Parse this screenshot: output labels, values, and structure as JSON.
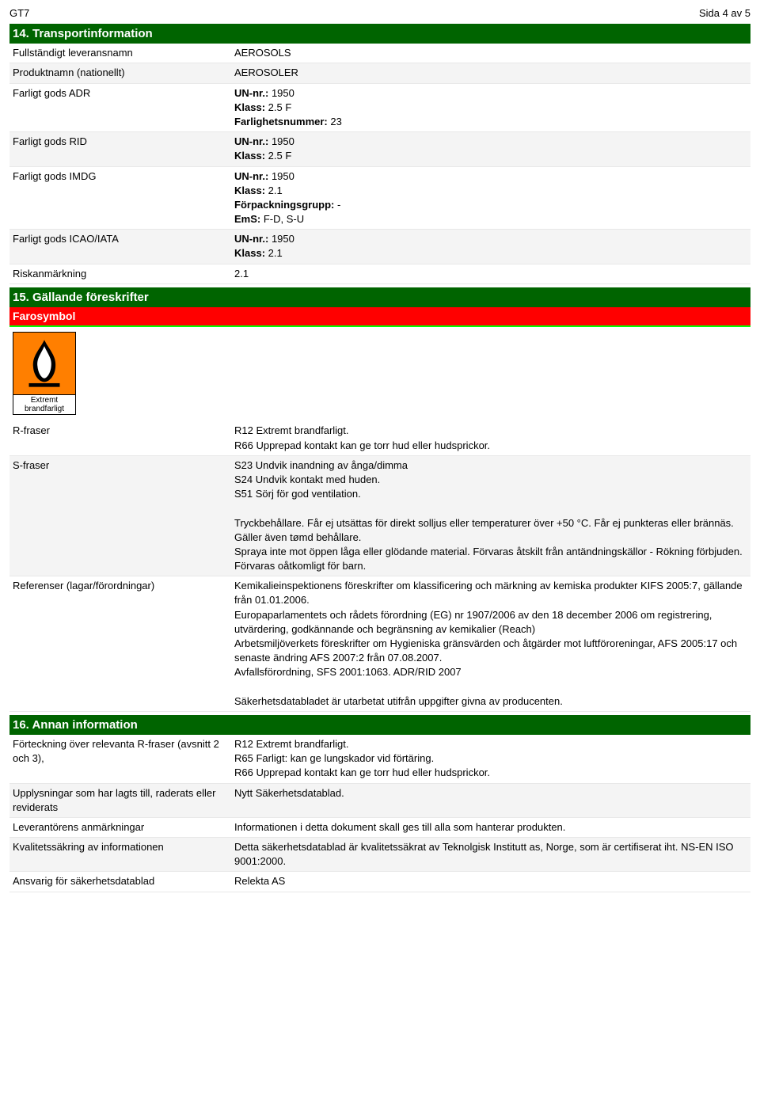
{
  "page_header": {
    "left": "GT7",
    "right": "Sida 4 av 5"
  },
  "section14": {
    "title": "14. Transportinformation",
    "rows": [
      {
        "key": "Fullständigt leveransnamn",
        "val": "AEROSOLS"
      },
      {
        "key": "Produktnamn (nationellt)",
        "val": "AEROSOLER"
      },
      {
        "key": "Farligt gods ADR",
        "val": "UN-nr.: 1950\nKlass: 2.5 F\nFarlighetsnummer: 23"
      },
      {
        "key": "Farligt gods RID",
        "val": "UN-nr.: 1950\nKlass: 2.5 F"
      },
      {
        "key": "Farligt gods IMDG",
        "val": "UN-nr.: 1950\nKlass: 2.1\nFörpackningsgrupp: -\nEmS: F-D, S-U"
      },
      {
        "key": "Farligt gods ICAO/IATA",
        "val": "UN-nr.: 1950\nKlass: 2.1"
      },
      {
        "key": "Riskanmärkning",
        "val": "2.1"
      }
    ]
  },
  "section15": {
    "title": "15. Gällande föreskrifter",
    "subheader": "Farosymbol",
    "symbol_label": "Extremt\nbrandfarligt",
    "rows": [
      {
        "key": "R-fraser",
        "val": "R12 Extremt brandfarligt.\nR66 Upprepad kontakt kan ge torr hud eller hudsprickor."
      },
      {
        "key": "S-fraser",
        "val": "S23 Undvik inandning av ånga/dimma\nS24 Undvik kontakt med huden.\nS51 Sörj för god ventilation.\n\nTryckbehållare. Får ej utsättas för direkt solljus eller temperaturer över +50 °C. Får ej punkteras eller brännäs. Gäller även tømd behållare.\nSpraya inte mot öppen låga eller glödande material. Förvaras åtskilt från antändningskällor - Rökning förbjuden. Förvaras oåtkomligt för barn."
      },
      {
        "key": "Referenser (lagar/förordningar)",
        "val": "Kemikalieinspektionens föreskrifter om klassificering och märkning av kemiska produkter KIFS 2005:7, gällande från 01.01.2006.\nEuropaparlamentets och rådets förordning (EG) nr 1907/2006 av den 18 december 2006 om registrering, utvärdering, godkännande och begränsning av kemikalier (Reach)\nArbetsmiljöverkets föreskrifter om Hygieniska gränsvärden och åtgärder mot luftföroreningar, AFS 2005:17 och senaste ändring AFS 2007:2 från 07.08.2007.\nAvfallsförordning, SFS 2001:1063. ADR/RID 2007\n\nSäkerhetsdatabladet är utarbetat utifrån uppgifter givna av producenten."
      }
    ]
  },
  "section16": {
    "title": "16. Annan information",
    "rows": [
      {
        "key": "Förteckning över relevanta R-fraser (avsnitt 2 och 3),",
        "val": "R12 Extremt brandfarligt.\nR65 Farligt: kan ge lungskador vid förtäring.\nR66 Upprepad kontakt kan ge torr hud eller hudsprickor."
      },
      {
        "key": "Upplysningar som har lagts till, raderats eller reviderats",
        "val": "Nytt Säkerhetsdatablad."
      },
      {
        "key": "Leverantörens anmärkningar",
        "val": "Informationen i detta dokument skall ges till alla som hanterar produkten."
      },
      {
        "key": "Kvalitetssäkring av informationen",
        "val": "Detta säkerhetsdatablad är kvalitetssäkrat av Teknolgisk Institutt as, Norge, som är certifiserat iht. NS-EN ISO 9001:2000."
      },
      {
        "key": "Ansvarig för säkerhetsdatablad",
        "val": "Relekta AS"
      }
    ]
  },
  "colors": {
    "section_bg": "#006400",
    "section_fg": "#ffffff",
    "sub_bg": "#ff0000",
    "sub_border": "#00ff00",
    "row_alt_bg": "#f4f4f4",
    "flame_bg": "#ff7f00"
  }
}
